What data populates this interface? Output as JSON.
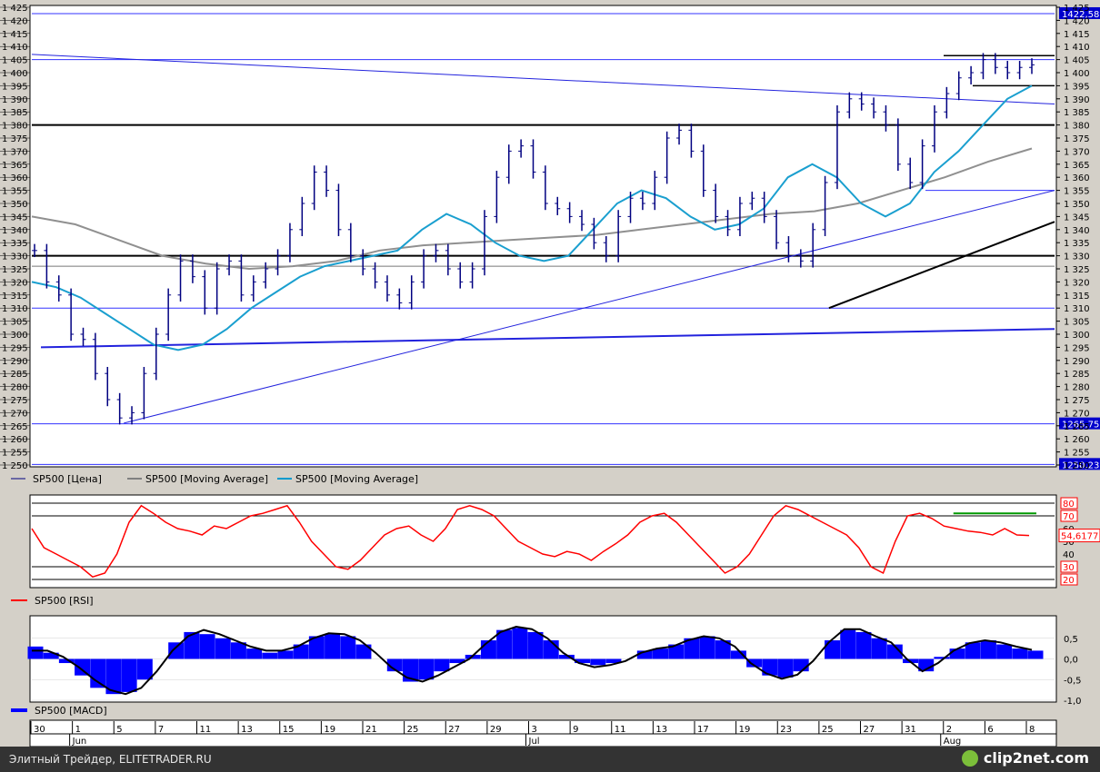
{
  "chart_data": [
    {
      "type": "line",
      "name": "price-panel",
      "ylim": [
        1250,
        1425
      ],
      "y_ticks": [
        "1 425",
        "1 420",
        "1 415",
        "1 410",
        "1 405",
        "1 400",
        "1 395",
        "1 390",
        "1 385",
        "1 380",
        "1 375",
        "1 370",
        "1 365",
        "1 360",
        "1 355",
        "1 350",
        "1 345",
        "1 340",
        "1 335",
        "1 330",
        "1 325",
        "1 320",
        "1 315",
        "1 310",
        "1 305",
        "1 300",
        "1 295",
        "1 290",
        "1 285",
        "1 280",
        "1 275",
        "1 270",
        "1 265",
        "1 260",
        "1 255",
        "1 250"
      ],
      "price_labels": [
        "1422,58",
        "1265,75",
        "1250,23"
      ],
      "legend": [
        "SP500 [Цена]",
        "SP500 [Moving Average]",
        "SP500 [Moving Average]"
      ],
      "series": [
        {
          "name": "SP500 [Цена]",
          "color": "#000080",
          "values": [
            1332,
            1320,
            1315,
            1300,
            1298,
            1285,
            1275,
            1268,
            1270,
            1285,
            1300,
            1315,
            1328,
            1322,
            1310,
            1325,
            1328,
            1315,
            1320,
            1325,
            1330,
            1340,
            1350,
            1362,
            1355,
            1340,
            1330,
            1325,
            1320,
            1315,
            1312,
            1320,
            1330,
            1332,
            1325,
            1320,
            1325,
            1345,
            1360,
            1370,
            1372,
            1362,
            1350,
            1348,
            1345,
            1342,
            1335,
            1330,
            1345,
            1352,
            1350,
            1360,
            1375,
            1378,
            1370,
            1355,
            1345,
            1340,
            1350,
            1352,
            1345,
            1335,
            1330,
            1328,
            1340,
            1358,
            1385,
            1390,
            1388,
            1385,
            1380,
            1365,
            1358,
            1372,
            1385,
            1392,
            1398,
            1400,
            1405,
            1402,
            1400,
            1402,
            1403
          ]
        },
        {
          "name": "SP500 [Moving Average]",
          "color": "#009acd",
          "values": [
            1320,
            1318,
            1314,
            1308,
            1302,
            1296,
            1294,
            1296,
            1302,
            1310,
            1316,
            1322,
            1326,
            1328,
            1330,
            1332,
            1340,
            1346,
            1342,
            1335,
            1330,
            1328,
            1330,
            1340,
            1350,
            1355,
            1352,
            1345,
            1340,
            1342,
            1348,
            1360,
            1365,
            1360,
            1350,
            1345,
            1350,
            1362,
            1370,
            1380,
            1390,
            1395
          ]
        },
        {
          "name": "SP500 [Moving Average]",
          "color": "#808080",
          "values": [
            1345,
            1342,
            1336,
            1330,
            1327,
            1325,
            1326,
            1328,
            1332,
            1334,
            1335,
            1336,
            1337,
            1338,
            1340,
            1342,
            1344,
            1346,
            1347,
            1350,
            1355,
            1360,
            1366,
            1371
          ]
        }
      ],
      "horizontal_levels": [
        1422.58,
        1405,
        1380,
        1330,
        1326,
        1310,
        1265.75,
        1250.23
      ],
      "trendlines": [
        {
          "from": [
            "30",
            1407
          ],
          "to": [
            "8",
            1388
          ]
        },
        {
          "from": [
            "5",
            1266
          ],
          "to": [
            "8",
            1355
          ]
        },
        {
          "from": [
            "25",
            1310
          ],
          "to": [
            "8",
            1343
          ]
        },
        {
          "from": [
            "30",
            1295
          ],
          "to": [
            "8",
            1302
          ]
        }
      ]
    },
    {
      "type": "line",
      "name": "rsi-panel",
      "ylim": [
        15,
        85
      ],
      "y_ticks": [
        "80",
        "70",
        "60",
        "50",
        "40",
        "30",
        "20"
      ],
      "levels": [
        80,
        70,
        30,
        20
      ],
      "current_value_label": "54,6177",
      "legend": [
        "SP500 [RSI]"
      ],
      "series": [
        {
          "name": "SP500 [RSI]",
          "color": "#ff0000",
          "values": [
            60,
            45,
            40,
            35,
            30,
            22,
            25,
            40,
            65,
            78,
            72,
            65,
            60,
            58,
            55,
            62,
            60,
            65,
            70,
            72,
            75,
            78,
            65,
            50,
            40,
            30,
            28,
            35,
            45,
            55,
            60,
            62,
            55,
            50,
            60,
            75,
            78,
            75,
            70,
            60,
            50,
            45,
            40,
            38,
            42,
            40,
            35,
            42,
            48,
            55,
            65,
            70,
            72,
            65,
            55,
            45,
            35,
            25,
            30,
            40,
            55,
            70,
            78,
            75,
            70,
            65,
            60,
            55,
            45,
            30,
            25,
            50,
            70,
            72,
            68,
            62,
            60,
            58,
            57,
            55,
            60,
            55,
            54.6
          ]
        }
      ],
      "annotation_segment": {
        "from": [
          "2",
          72
        ],
        "to": [
          "8",
          72
        ],
        "color": "#009900"
      }
    },
    {
      "type": "bar",
      "name": "macd-panel",
      "ylim": [
        -1.0,
        1.0
      ],
      "y_ticks": [
        "0,5",
        "0,0",
        "-0,5",
        "-1,0"
      ],
      "legend": [
        "SP500 [MACD]"
      ],
      "series": [
        {
          "name": "histogram",
          "color": "#0000ff",
          "values": [
            0.3,
            0.15,
            -0.1,
            -0.4,
            -0.7,
            -0.85,
            -0.8,
            -0.5,
            0.0,
            0.4,
            0.65,
            0.6,
            0.5,
            0.4,
            0.25,
            0.15,
            0.2,
            0.35,
            0.55,
            0.6,
            0.55,
            0.35,
            0.0,
            -0.3,
            -0.55,
            -0.5,
            -0.3,
            -0.1,
            0.1,
            0.45,
            0.7,
            0.75,
            0.65,
            0.45,
            0.1,
            -0.1,
            -0.15,
            -0.1,
            0.0,
            0.2,
            0.25,
            0.35,
            0.5,
            0.55,
            0.45,
            0.2,
            -0.2,
            -0.4,
            -0.45,
            -0.3,
            0.0,
            0.45,
            0.7,
            0.65,
            0.5,
            0.35,
            -0.1,
            -0.3,
            0.05,
            0.25,
            0.4,
            0.45,
            0.35,
            0.25,
            0.2
          ]
        },
        {
          "name": "signal",
          "color": "#000000",
          "values": [
            0.2,
            0.2,
            0.05,
            -0.2,
            -0.5,
            -0.75,
            -0.85,
            -0.7,
            -0.3,
            0.2,
            0.55,
            0.7,
            0.6,
            0.45,
            0.3,
            0.2,
            0.2,
            0.3,
            0.5,
            0.62,
            0.6,
            0.45,
            0.15,
            -0.2,
            -0.45,
            -0.55,
            -0.4,
            -0.2,
            0.0,
            0.35,
            0.65,
            0.78,
            0.72,
            0.5,
            0.15,
            -0.1,
            -0.2,
            -0.15,
            -0.05,
            0.15,
            0.25,
            0.3,
            0.45,
            0.55,
            0.5,
            0.3,
            -0.1,
            -0.35,
            -0.48,
            -0.38,
            -0.05,
            0.4,
            0.72,
            0.72,
            0.55,
            0.4,
            0.0,
            -0.3,
            -0.1,
            0.2,
            0.38,
            0.45,
            0.4,
            0.3,
            0.22
          ]
        }
      ]
    }
  ],
  "x_axis": {
    "day_labels": [
      "30",
      "1",
      "5",
      "7",
      "11",
      "13",
      "15",
      "19",
      "21",
      "25",
      "27",
      "29",
      "3",
      "9",
      "11",
      "13",
      "17",
      "19",
      "23",
      "25",
      "27",
      "31",
      "2",
      "6",
      "8"
    ],
    "month_labels": [
      "Jun",
      "Jul",
      "Aug"
    ]
  },
  "footer": {
    "left_text": "Элитный Трейдер, ELITETRADER.RU",
    "logo_text": "clip2net.com"
  },
  "colors": {
    "price_bar": "#000080",
    "ma_fast": "#009acd",
    "ma_slow": "#808080",
    "rsi": "#ff0000",
    "macd_hist": "#0000ff",
    "macd_signal": "#000000",
    "level_line": "#3333ff",
    "strong_level": "#000000"
  }
}
